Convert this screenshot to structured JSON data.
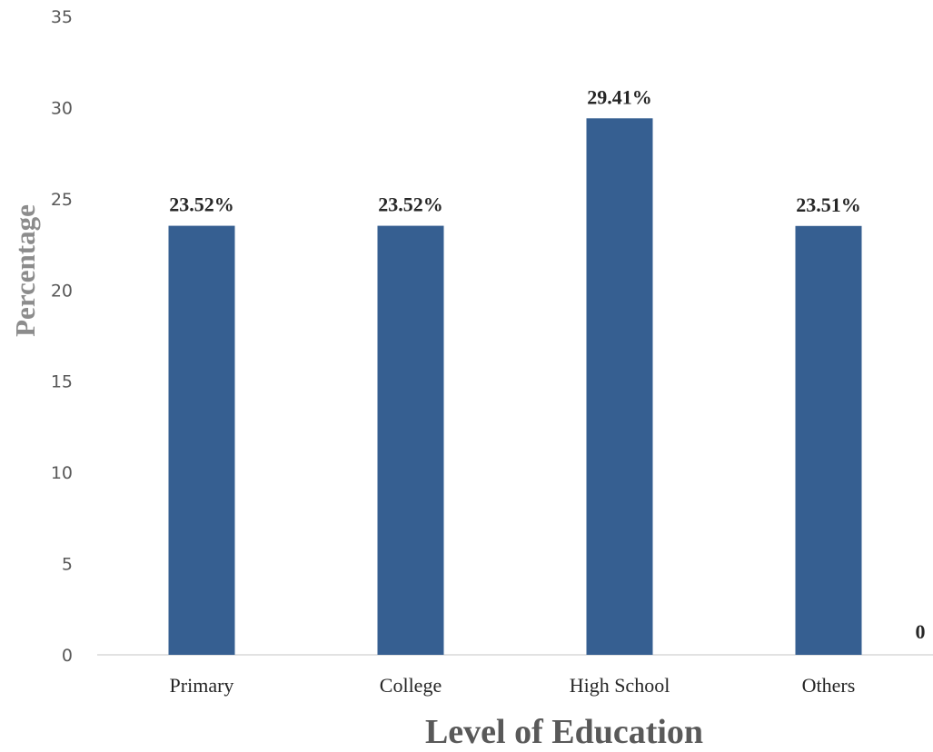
{
  "chart_data": {
    "type": "bar",
    "categories": [
      "Primary",
      "College",
      "High School",
      "Others"
    ],
    "values": [
      23.52,
      23.52,
      29.41,
      23.51
    ],
    "data_labels": [
      "23.52%",
      "23.52%",
      "29.41%",
      "23.51%"
    ],
    "extra_label": "0",
    "xlabel": "Level of Education",
    "ylabel": "Percentage",
    "ylim": [
      0,
      35
    ],
    "yticks": [
      0,
      5,
      10,
      15,
      20,
      25,
      30,
      35
    ],
    "grid": false,
    "legend": "none",
    "bar_color": "#365F91"
  }
}
